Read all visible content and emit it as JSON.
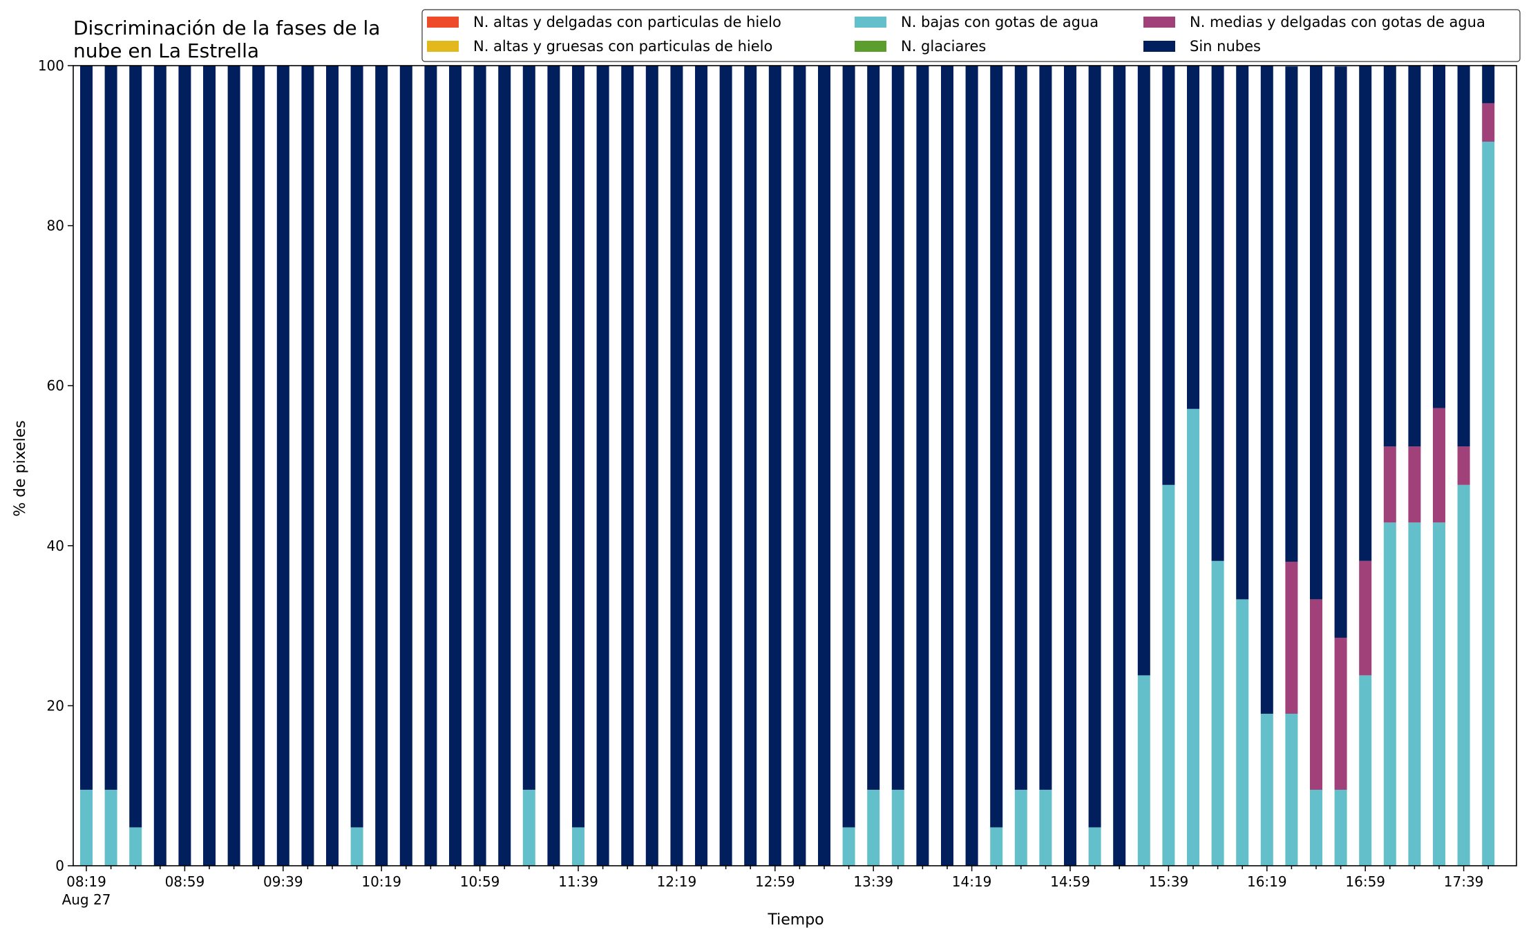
{
  "chart_data": {
    "type": "bar",
    "stacked": true,
    "title_lines": [
      "Discriminación de la fases de la",
      "nube en La Estrella"
    ],
    "xlabel": "Tiempo",
    "ylabel": "% de pixeles",
    "ylim": [
      0,
      100
    ],
    "yticks": [
      "0",
      "20",
      "40",
      "60",
      "80",
      "100"
    ],
    "xtick_labels": [
      "08:19",
      "08:59",
      "09:39",
      "10:19",
      "10:59",
      "11:39",
      "12:19",
      "12:59",
      "13:39",
      "14:19",
      "14:59",
      "15:39",
      "16:19",
      "16:59",
      "17:39"
    ],
    "xtick_date_label": "Aug 27",
    "x_start": "08:19",
    "x_step_minutes": 10,
    "grid": false,
    "legend_position": "top-right",
    "series": [
      {
        "name": "N. altas y delgadas con particulas de hielo",
        "color": "#ee4b2b",
        "values": [
          0,
          0,
          0,
          0,
          0,
          0,
          0,
          0,
          0,
          0,
          0,
          0,
          0,
          0,
          0,
          0,
          0,
          0,
          0,
          0,
          0,
          0,
          0,
          0,
          0,
          0,
          0,
          0,
          0,
          0,
          0,
          0,
          0,
          0,
          0,
          0,
          0,
          0,
          0,
          0,
          0,
          0,
          0,
          0,
          0,
          0,
          0,
          0,
          0,
          0,
          0,
          0,
          0,
          0,
          0,
          0,
          0,
          0
        ]
      },
      {
        "name": "N. altas y gruesas con particulas de hielo",
        "color": "#e3b81c",
        "values": [
          0,
          0,
          0,
          0,
          0,
          0,
          0,
          0,
          0,
          0,
          0,
          0,
          0,
          0,
          0,
          0,
          0,
          0,
          0,
          0,
          0,
          0,
          0,
          0,
          0,
          0,
          0,
          0,
          0,
          0,
          0,
          0,
          0,
          0,
          0,
          0,
          0,
          0,
          0,
          0,
          0,
          0,
          0,
          0,
          0,
          0,
          0,
          0,
          0,
          0,
          0,
          0,
          0,
          0,
          0,
          0,
          0,
          0
        ]
      },
      {
        "name": "N. bajas con gotas de agua",
        "color": "#63bfc9",
        "values": [
          9.5,
          9.5,
          4.8,
          0,
          0,
          0,
          0,
          0,
          0,
          0,
          0,
          4.8,
          0,
          0,
          0,
          0,
          0,
          0,
          9.5,
          0,
          4.8,
          0,
          0,
          0,
          0,
          0,
          0,
          0,
          0,
          0,
          0,
          4.8,
          9.5,
          9.5,
          0,
          0,
          0,
          4.8,
          9.5,
          9.5,
          0,
          4.8,
          0,
          23.8,
          47.6,
          57.1,
          38.1,
          33.3,
          19.0,
          19.0,
          9.5,
          9.5,
          23.8,
          42.9,
          42.9,
          42.9,
          47.6,
          90.5
        ]
      },
      {
        "name": "N. glaciares",
        "color": "#5c9e2e",
        "values": [
          0,
          0,
          0,
          0,
          0,
          0,
          0,
          0,
          0,
          0,
          0,
          0,
          0,
          0,
          0,
          0,
          0,
          0,
          0,
          0,
          0,
          0,
          0,
          0,
          0,
          0,
          0,
          0,
          0,
          0,
          0,
          0,
          0,
          0,
          0,
          0,
          0,
          0,
          0,
          0,
          0,
          0,
          0,
          0,
          0,
          0,
          0,
          0,
          0,
          0,
          0,
          0,
          0,
          0,
          0,
          0,
          0,
          0
        ]
      },
      {
        "name": "N. medias y delgadas con gotas de agua",
        "color": "#a0417a",
        "values": [
          0,
          0,
          0,
          0,
          0,
          0,
          0,
          0,
          0,
          0,
          0,
          0,
          0,
          0,
          0,
          0,
          0,
          0,
          0,
          0,
          0,
          0,
          0,
          0,
          0,
          0,
          0,
          0,
          0,
          0,
          0,
          0,
          0,
          0,
          0,
          0,
          0,
          0,
          0,
          0,
          0,
          0,
          0,
          0,
          0,
          0,
          0,
          0,
          0,
          19.0,
          23.8,
          19.0,
          14.3,
          9.5,
          9.5,
          14.3,
          4.8,
          4.8
        ]
      },
      {
        "name": "Sin nubes",
        "color": "#001f5c",
        "values": [
          90.5,
          90.5,
          95.2,
          100,
          100,
          100,
          100,
          100,
          100,
          100,
          100,
          95.2,
          100,
          100,
          100,
          100,
          100,
          100,
          90.5,
          100,
          95.2,
          100,
          100,
          100,
          100,
          100,
          100,
          100,
          100,
          100,
          100,
          95.2,
          90.5,
          90.5,
          100,
          100,
          100,
          95.2,
          90.5,
          90.5,
          100,
          95.2,
          100,
          76.2,
          52.4,
          42.9,
          61.9,
          66.7,
          81.0,
          61.9,
          66.7,
          71.4,
          61.9,
          47.6,
          47.6,
          42.9,
          47.6,
          4.8
        ]
      }
    ]
  }
}
